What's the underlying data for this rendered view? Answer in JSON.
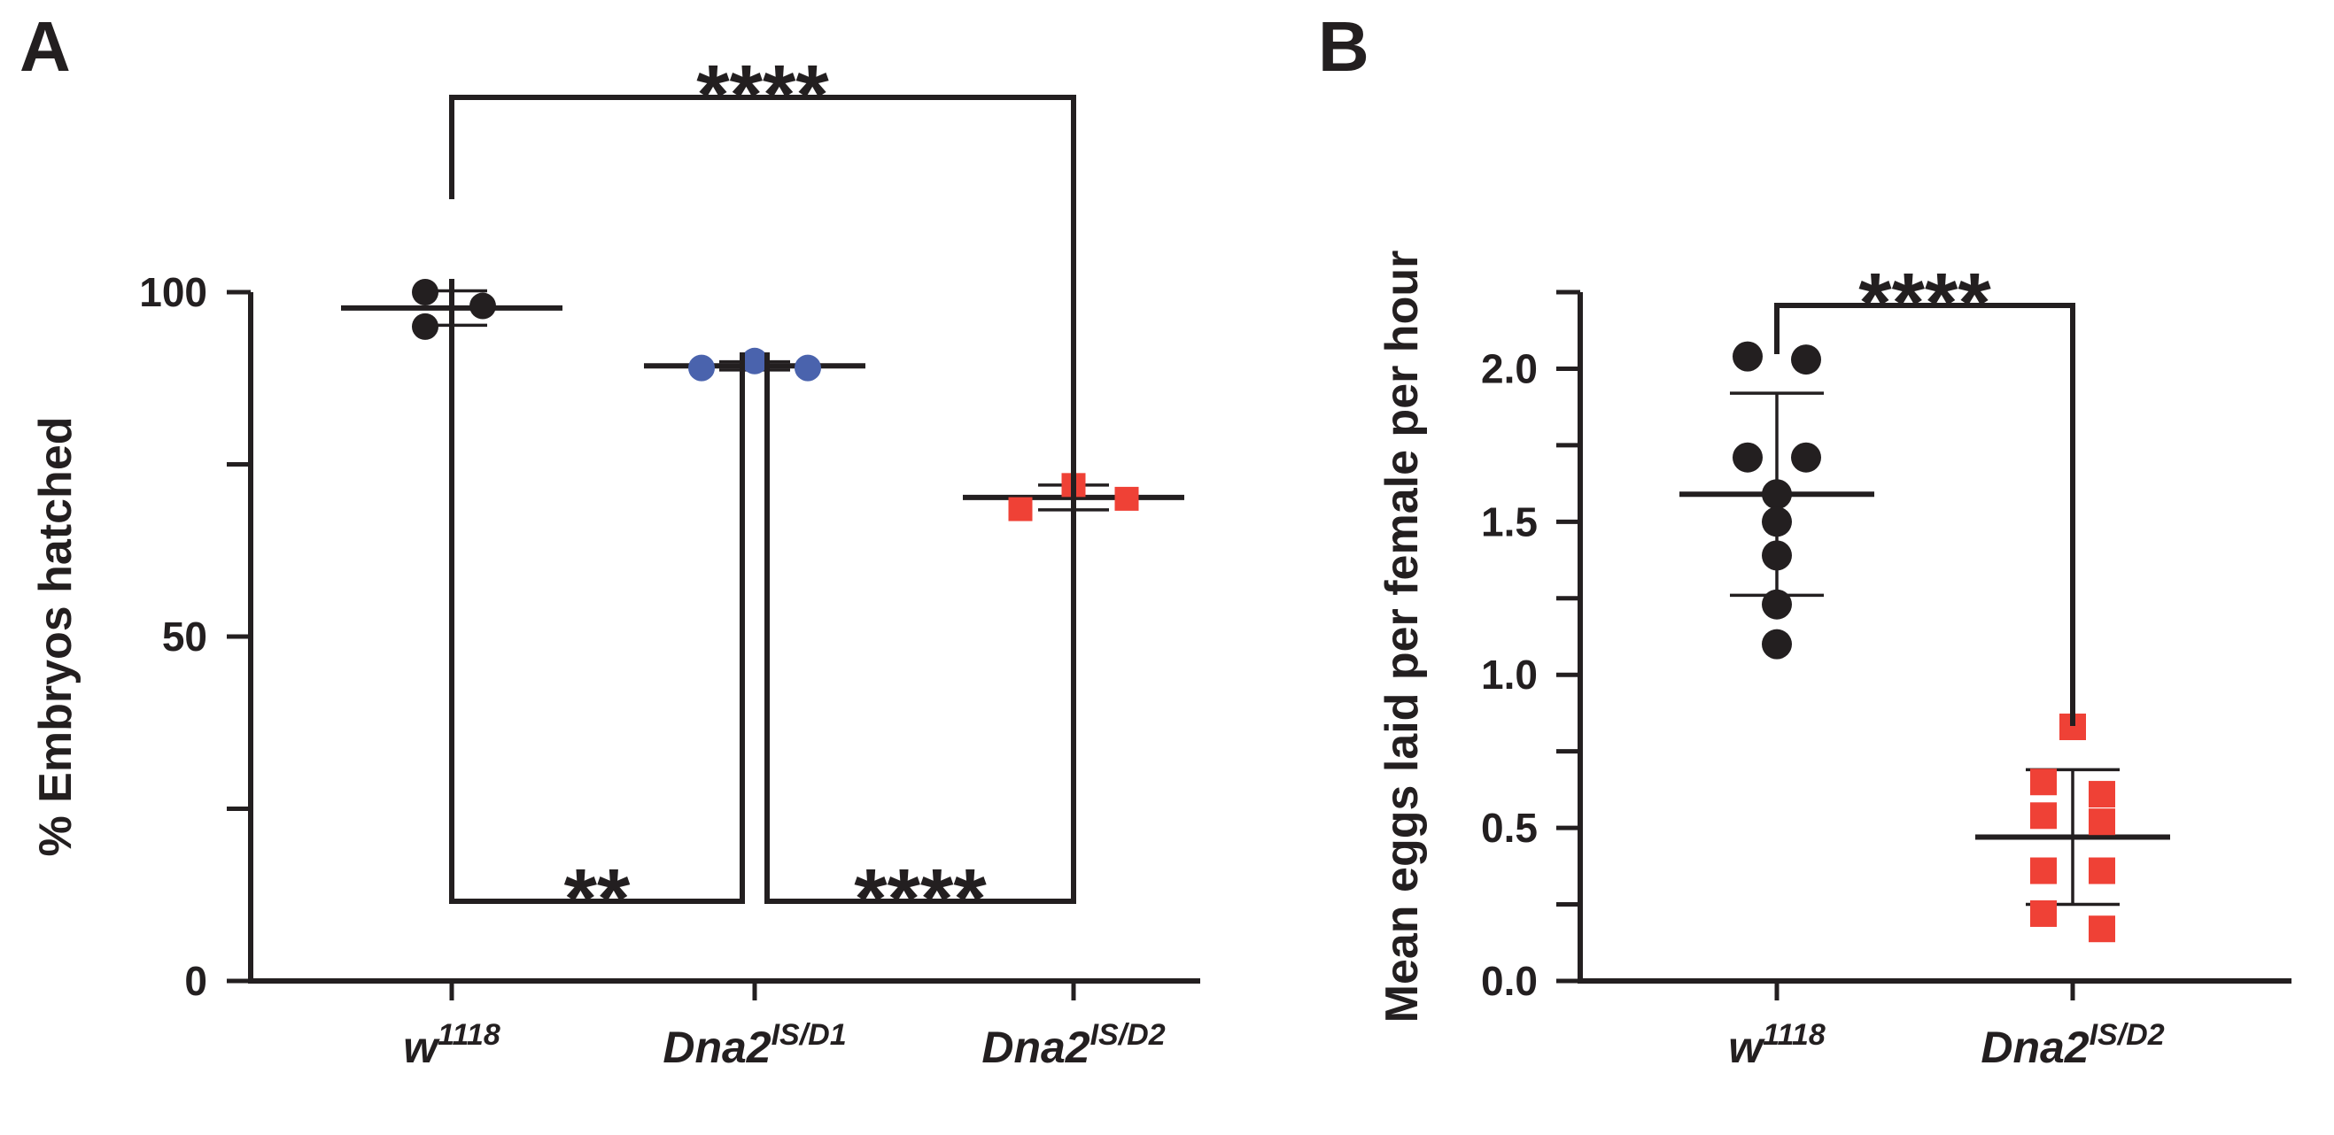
{
  "colors": {
    "ink": "#231f20",
    "black_group": "#231f20",
    "blue_group": "#4a63ad",
    "red_group": "#ef4136"
  },
  "chart_data": [
    {
      "panel": "A",
      "type": "scatter",
      "title": "",
      "xlabel": "",
      "ylabel": "% Embryos hatched",
      "ylim": [
        0,
        100
      ],
      "yticks": [
        0,
        50,
        100
      ],
      "ytick_labels": [
        "0",
        "50",
        "100"
      ],
      "minor_yticks": [
        25,
        75
      ],
      "categories": [
        {
          "base": "w",
          "sup": "1118"
        },
        {
          "base": "Dna2",
          "sup": "IS/D1"
        },
        {
          "base": "Dna2",
          "sup": "IS/D2"
        }
      ],
      "series": [
        {
          "name": "w1118",
          "marker": "circle",
          "color": "#231f20",
          "values": [
            100,
            98,
            95
          ],
          "mean": 97.7,
          "sd": 2.5
        },
        {
          "name": "Dna2 IS/D1",
          "marker": "circle",
          "color": "#4a63ad",
          "values": [
            89,
            90,
            89
          ],
          "mean": 89.3,
          "sd": 0.6
        },
        {
          "name": "Dna2 IS/D2",
          "marker": "square",
          "color": "#ef4136",
          "values": [
            68.5,
            72,
            70
          ],
          "mean": 70.2,
          "sd": 1.8
        }
      ],
      "significance": [
        {
          "from": 0,
          "to": 2,
          "label": "****",
          "level": 1
        },
        {
          "from": 0,
          "to": 1,
          "label": "**",
          "level": 0
        },
        {
          "from": 1,
          "to": 2,
          "label": "****",
          "level": 0
        }
      ]
    },
    {
      "panel": "B",
      "type": "scatter",
      "title": "",
      "xlabel": "",
      "ylabel": "Mean eggs laid per female per hour",
      "ylim": [
        0,
        2.25
      ],
      "yticks": [
        0,
        0.5,
        1.0,
        1.5,
        2.0
      ],
      "ytick_labels": [
        "0.0",
        "0.5",
        "1.0",
        "1.5",
        "2.0"
      ],
      "minor_yticks": [
        0.25,
        0.75,
        1.25,
        1.75,
        2.25
      ],
      "categories": [
        {
          "base": "w",
          "sup": "1118"
        },
        {
          "base": "Dna2",
          "sup": "IS/D2"
        }
      ],
      "series": [
        {
          "name": "w1118",
          "marker": "circle",
          "color": "#231f20",
          "values": [
            2.04,
            2.03,
            1.71,
            1.71,
            1.59,
            1.5,
            1.39,
            1.23,
            1.1
          ],
          "mean": 1.59,
          "sd": 0.33
        },
        {
          "name": "Dna2 IS/D2",
          "marker": "square",
          "color": "#ef4136",
          "values": [
            0.83,
            0.65,
            0.61,
            0.54,
            0.52,
            0.36,
            0.36,
            0.22,
            0.17
          ],
          "mean": 0.47,
          "sd": 0.22
        }
      ],
      "significance": [
        {
          "from": 0,
          "to": 1,
          "label": "****",
          "level": 0
        }
      ]
    }
  ]
}
